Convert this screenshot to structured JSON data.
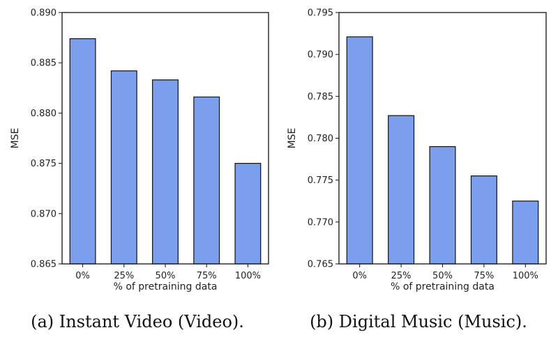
{
  "chart_data": [
    {
      "type": "bar",
      "caption": "(a) Instant Video (Video).",
      "xlabel": "% of pretraining data",
      "ylabel": "MSE",
      "categories": [
        "0%",
        "25%",
        "50%",
        "75%",
        "100%"
      ],
      "values": [
        0.8874,
        0.8842,
        0.8833,
        0.8816,
        0.875
      ],
      "ylim": [
        0.865,
        0.89
      ],
      "yticks": [
        "0.865",
        "0.870",
        "0.875",
        "0.880",
        "0.885",
        "0.890"
      ],
      "bar_color": "#7b9fec",
      "grid": false
    },
    {
      "type": "bar",
      "caption": "(b) Digital Music (Music).",
      "xlabel": "% of pretraining data",
      "ylabel": "MSE",
      "categories": [
        "0%",
        "25%",
        "50%",
        "75%",
        "100%"
      ],
      "values": [
        0.7921,
        0.7827,
        0.779,
        0.7755,
        0.7725
      ],
      "ylim": [
        0.765,
        0.795
      ],
      "yticks": [
        "0.765",
        "0.770",
        "0.775",
        "0.780",
        "0.785",
        "0.790",
        "0.795"
      ],
      "bar_color": "#7b9fec",
      "grid": false
    }
  ]
}
